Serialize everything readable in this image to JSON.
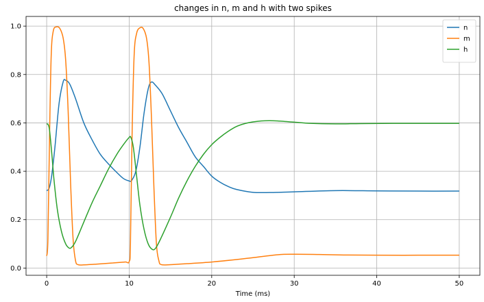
{
  "chart_data": {
    "type": "line",
    "title": "changes in n, m and h with two spikes",
    "xlabel": "Time (ms)",
    "ylabel": "",
    "xlim": [
      -2.5,
      52.5
    ],
    "ylim": [
      -0.03,
      1.04
    ],
    "xticks": [
      0,
      10,
      20,
      30,
      40,
      50
    ],
    "yticks": [
      0.0,
      0.2,
      0.4,
      0.6,
      0.8,
      1.0
    ],
    "xtick_labels": [
      "0",
      "10",
      "20",
      "30",
      "40",
      "50"
    ],
    "ytick_labels": [
      "0.0",
      "0.2",
      "0.4",
      "0.6",
      "0.8",
      "1.0"
    ],
    "grid": true,
    "legend_position": "top-right",
    "series": [
      {
        "name": "n",
        "color": "#1f77b4",
        "points": [
          [
            0,
            0.32
          ],
          [
            0.3,
            0.33
          ],
          [
            0.6,
            0.38
          ],
          [
            1.0,
            0.5
          ],
          [
            1.5,
            0.68
          ],
          [
            2.0,
            0.77
          ],
          [
            2.3,
            0.776
          ],
          [
            2.8,
            0.76
          ],
          [
            3.5,
            0.7
          ],
          [
            4.5,
            0.6
          ],
          [
            5.5,
            0.53
          ],
          [
            6.5,
            0.47
          ],
          [
            7.5,
            0.43
          ],
          [
            8.5,
            0.395
          ],
          [
            9.3,
            0.37
          ],
          [
            10.0,
            0.36
          ],
          [
            10.3,
            0.362
          ],
          [
            10.8,
            0.4
          ],
          [
            11.3,
            0.5
          ],
          [
            11.8,
            0.64
          ],
          [
            12.3,
            0.74
          ],
          [
            12.7,
            0.769
          ],
          [
            13.2,
            0.755
          ],
          [
            14.0,
            0.72
          ],
          [
            15.0,
            0.65
          ],
          [
            16.0,
            0.58
          ],
          [
            17.0,
            0.52
          ],
          [
            18.0,
            0.46
          ],
          [
            19.0,
            0.42
          ],
          [
            20.0,
            0.38
          ],
          [
            21.0,
            0.355
          ],
          [
            22.0,
            0.337
          ],
          [
            23.0,
            0.325
          ],
          [
            25.0,
            0.313
          ],
          [
            27.0,
            0.312
          ],
          [
            30.0,
            0.315
          ],
          [
            35.0,
            0.32
          ],
          [
            40.0,
            0.319
          ],
          [
            45.0,
            0.318
          ],
          [
            50.0,
            0.318
          ]
        ]
      },
      {
        "name": "m",
        "color": "#ff7f0e",
        "points": [
          [
            0,
            0.05
          ],
          [
            0.15,
            0.12
          ],
          [
            0.35,
            0.55
          ],
          [
            0.55,
            0.88
          ],
          [
            0.8,
            0.98
          ],
          [
            1.2,
            0.997
          ],
          [
            1.6,
            0.99
          ],
          [
            2.0,
            0.95
          ],
          [
            2.3,
            0.86
          ],
          [
            2.6,
            0.65
          ],
          [
            2.9,
            0.35
          ],
          [
            3.2,
            0.12
          ],
          [
            3.5,
            0.03
          ],
          [
            3.8,
            0.014
          ],
          [
            4.5,
            0.013
          ],
          [
            6.0,
            0.016
          ],
          [
            8.0,
            0.021
          ],
          [
            9.5,
            0.025
          ],
          [
            10.0,
            0.027
          ],
          [
            10.15,
            0.1
          ],
          [
            10.35,
            0.55
          ],
          [
            10.6,
            0.88
          ],
          [
            10.9,
            0.97
          ],
          [
            11.3,
            0.993
          ],
          [
            11.7,
            0.99
          ],
          [
            12.1,
            0.95
          ],
          [
            12.4,
            0.85
          ],
          [
            12.7,
            0.62
          ],
          [
            13.0,
            0.33
          ],
          [
            13.3,
            0.1
          ],
          [
            13.6,
            0.03
          ],
          [
            13.9,
            0.014
          ],
          [
            15.0,
            0.014
          ],
          [
            17.0,
            0.018
          ],
          [
            20.0,
            0.025
          ],
          [
            23.0,
            0.035
          ],
          [
            25.0,
            0.043
          ],
          [
            28.0,
            0.055
          ],
          [
            30.0,
            0.057
          ],
          [
            33.0,
            0.056
          ],
          [
            36.0,
            0.054
          ],
          [
            40.0,
            0.053
          ],
          [
            45.0,
            0.053
          ],
          [
            50.0,
            0.053
          ]
        ]
      },
      {
        "name": "h",
        "color": "#2ca02c",
        "points": [
          [
            0,
            0.597
          ],
          [
            0.3,
            0.58
          ],
          [
            0.6,
            0.48
          ],
          [
            0.9,
            0.36
          ],
          [
            1.3,
            0.24
          ],
          [
            1.8,
            0.15
          ],
          [
            2.3,
            0.1
          ],
          [
            2.7,
            0.083
          ],
          [
            3.0,
            0.085
          ],
          [
            3.5,
            0.11
          ],
          [
            4.5,
            0.19
          ],
          [
            5.5,
            0.27
          ],
          [
            6.5,
            0.34
          ],
          [
            7.5,
            0.41
          ],
          [
            8.5,
            0.47
          ],
          [
            9.3,
            0.51
          ],
          [
            10.0,
            0.54
          ],
          [
            10.2,
            0.54
          ],
          [
            10.5,
            0.5
          ],
          [
            10.9,
            0.38
          ],
          [
            11.3,
            0.26
          ],
          [
            11.8,
            0.16
          ],
          [
            12.3,
            0.1
          ],
          [
            12.8,
            0.077
          ],
          [
            13.2,
            0.082
          ],
          [
            13.8,
            0.12
          ],
          [
            15.0,
            0.21
          ],
          [
            16.0,
            0.29
          ],
          [
            17.0,
            0.36
          ],
          [
            18.0,
            0.42
          ],
          [
            19.0,
            0.47
          ],
          [
            20.0,
            0.51
          ],
          [
            21.0,
            0.54
          ],
          [
            22.0,
            0.565
          ],
          [
            23.0,
            0.585
          ],
          [
            24.0,
            0.597
          ],
          [
            25.0,
            0.604
          ],
          [
            26.0,
            0.608
          ],
          [
            27.0,
            0.609
          ],
          [
            28.0,
            0.608
          ],
          [
            30.0,
            0.603
          ],
          [
            32.0,
            0.598
          ],
          [
            35.0,
            0.596
          ],
          [
            38.0,
            0.597
          ],
          [
            42.0,
            0.598
          ],
          [
            46.0,
            0.598
          ],
          [
            50.0,
            0.598
          ]
        ]
      }
    ]
  }
}
